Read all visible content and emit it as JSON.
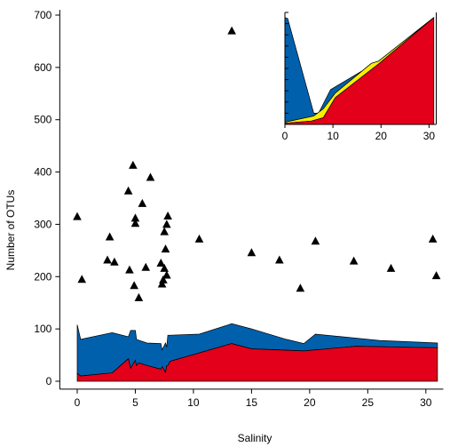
{
  "chart_data": [
    {
      "type": "scatter",
      "title": "",
      "xlabel": "Salinity",
      "ylabel": "Number of OTUs",
      "xlim": [
        -1.5,
        31.5
      ],
      "ylim": [
        -15,
        710
      ],
      "x_ticks": [
        0,
        5,
        10,
        15,
        20,
        25,
        30
      ],
      "y_ticks": [
        0,
        100,
        200,
        300,
        400,
        500,
        600,
        700
      ],
      "grid": false,
      "legend": "none",
      "colors": {
        "blue": "#0060ac",
        "red": "#e2001a",
        "yellow": "#f7ee00",
        "marker": "#000000"
      },
      "points": [
        {
          "x": 0.0,
          "y": 315
        },
        {
          "x": 0.4,
          "y": 195
        },
        {
          "x": 2.6,
          "y": 232
        },
        {
          "x": 2.8,
          "y": 276
        },
        {
          "x": 3.2,
          "y": 228
        },
        {
          "x": 4.4,
          "y": 364
        },
        {
          "x": 4.5,
          "y": 213
        },
        {
          "x": 4.8,
          "y": 413
        },
        {
          "x": 4.9,
          "y": 183
        },
        {
          "x": 5.0,
          "y": 312
        },
        {
          "x": 5.0,
          "y": 302
        },
        {
          "x": 5.3,
          "y": 160
        },
        {
          "x": 5.6,
          "y": 340
        },
        {
          "x": 5.9,
          "y": 218
        },
        {
          "x": 6.3,
          "y": 390
        },
        {
          "x": 7.2,
          "y": 226
        },
        {
          "x": 7.3,
          "y": 186
        },
        {
          "x": 7.4,
          "y": 194
        },
        {
          "x": 7.5,
          "y": 216
        },
        {
          "x": 7.5,
          "y": 286
        },
        {
          "x": 7.6,
          "y": 253
        },
        {
          "x": 7.7,
          "y": 300
        },
        {
          "x": 7.8,
          "y": 316
        },
        {
          "x": 7.7,
          "y": 203
        },
        {
          "x": 10.5,
          "y": 272
        },
        {
          "x": 13.3,
          "y": 670
        },
        {
          "x": 15.0,
          "y": 246
        },
        {
          "x": 17.4,
          "y": 232
        },
        {
          "x": 19.2,
          "y": 178
        },
        {
          "x": 20.5,
          "y": 268
        },
        {
          "x": 23.8,
          "y": 230
        },
        {
          "x": 27.0,
          "y": 216
        },
        {
          "x": 30.6,
          "y": 272
        },
        {
          "x": 30.9,
          "y": 202
        }
      ],
      "areas": {
        "upper_x": [
          0.0,
          0.3,
          3.0,
          4.4,
          4.6,
          5.0,
          5.1,
          6.0,
          7.2,
          7.3,
          7.6,
          7.7,
          7.8,
          8.0,
          10.5,
          13.3,
          15.0,
          18.0,
          19.5,
          20.5,
          26.0,
          31.0
        ],
        "upper_y": [
          108,
          80,
          93,
          85,
          97,
          97,
          80,
          73,
          72,
          60,
          73,
          65,
          88,
          88,
          90,
          110,
          100,
          80,
          72,
          90,
          78,
          73
        ],
        "middle_x": [
          0.0,
          0.3,
          3.0,
          4.4,
          4.6,
          5.0,
          5.1,
          5.3,
          6.0,
          7.2,
          7.3,
          7.6,
          7.7,
          7.8,
          8.0,
          13.3,
          15.0,
          19.5,
          24.0,
          31.0
        ],
        "middle_y": [
          15,
          10,
          16,
          43,
          25,
          40,
          30,
          35,
          30,
          23,
          28,
          17,
          30,
          30,
          38,
          72,
          62,
          58,
          67,
          64
        ],
        "baseline_y": 0,
        "x_end": 31.0
      }
    },
    {
      "type": "area",
      "title": "",
      "xlabel": "",
      "ylabel": "",
      "xlim": [
        0,
        31.5
      ],
      "ylim": [
        0,
        1
      ],
      "x_ticks": [
        0,
        10,
        20,
        30
      ],
      "grid": false,
      "legend": "none",
      "upper_x": [
        0.0,
        0.6,
        1.0,
        6.0,
        7.0,
        9.5,
        19.5,
        31.0
      ],
      "upper_y": [
        0.955,
        0.945,
        0.88,
        0.1,
        0.1,
        0.31,
        0.565,
        0.955
      ],
      "middle_x": [
        0.0,
        6.0,
        8.0,
        10.5,
        18.0,
        19.5,
        31.0
      ],
      "middle_y": [
        0.02,
        0.075,
        0.14,
        0.28,
        0.545,
        0.565,
        0.955
      ],
      "lower_x": [
        0.0,
        5.5,
        8.0,
        10.5,
        19.5,
        31.0
      ],
      "lower_y": [
        0.01,
        0.03,
        0.06,
        0.24,
        0.54,
        0.955
      ]
    }
  ]
}
